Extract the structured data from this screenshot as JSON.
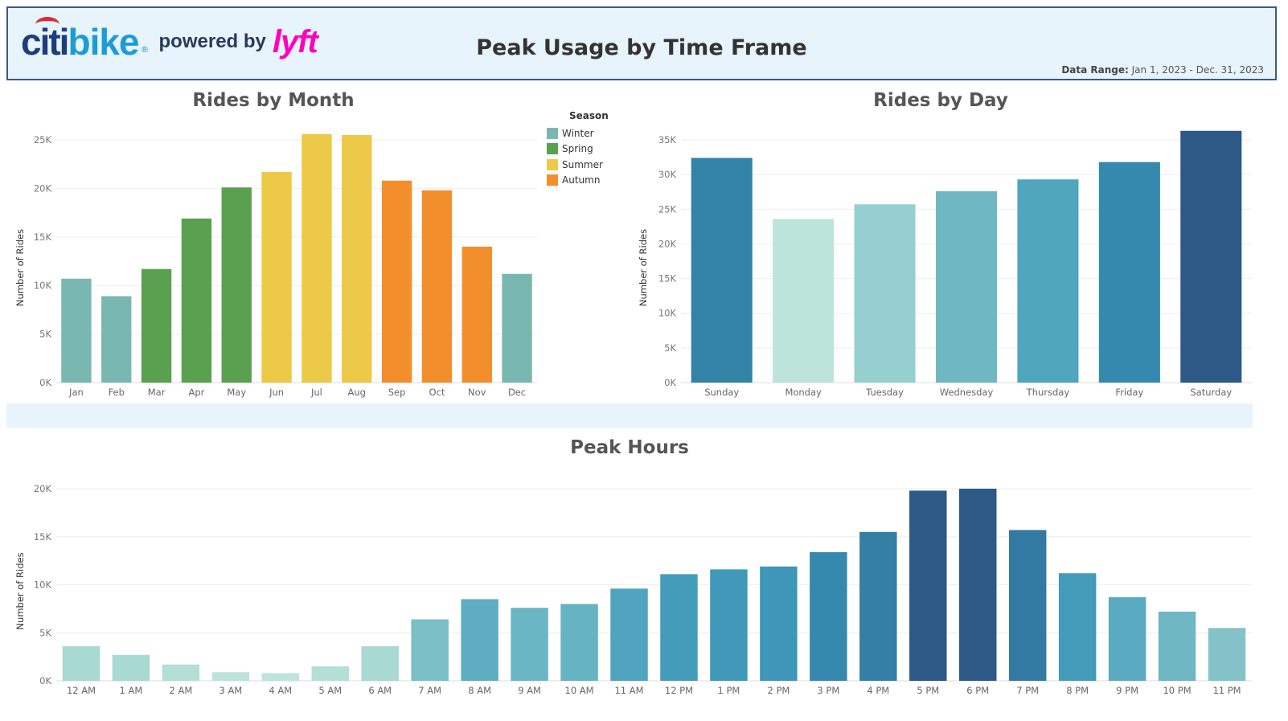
{
  "header": {
    "logo_citi": "citi",
    "logo_bike": "bike",
    "logo_reg": "®",
    "logo_powered": "powered by",
    "logo_lyft": "lyft",
    "title": "Peak Usage by Time Frame",
    "data_range_label": "Data Range:",
    "data_range_value": "Jan 1, 2023 - Dec. 31, 2023"
  },
  "legend": {
    "title": "Season",
    "items": [
      {
        "label": "Winter",
        "color": "#79b8b0"
      },
      {
        "label": "Spring",
        "color": "#59a14f"
      },
      {
        "label": "Summer",
        "color": "#edc948"
      },
      {
        "label": "Autumn",
        "color": "#f28e2b"
      }
    ]
  },
  "chart_data": [
    {
      "type": "bar",
      "title": "Rides by Month",
      "xlabel": "",
      "ylabel": "Number of Rides",
      "ylim": [
        0,
        25000
      ],
      "yticks": [
        "0K",
        "5K",
        "10K",
        "15K",
        "20K",
        "25K"
      ],
      "categories": [
        "Jan",
        "Feb",
        "Mar",
        "Apr",
        "May",
        "Jun",
        "Jul",
        "Aug",
        "Sep",
        "Oct",
        "Nov",
        "Dec"
      ],
      "values": [
        10700,
        8900,
        11700,
        16900,
        20100,
        21700,
        25600,
        25500,
        20800,
        19800,
        14000,
        11200
      ],
      "colors": [
        "#79b8b0",
        "#79b8b0",
        "#59a14f",
        "#59a14f",
        "#59a14f",
        "#edc948",
        "#edc948",
        "#edc948",
        "#f28e2b",
        "#f28e2b",
        "#f28e2b",
        "#79b8b0"
      ],
      "grid": true
    },
    {
      "type": "bar",
      "title": "Rides by Day",
      "xlabel": "",
      "ylabel": "Number of Rides",
      "ylim": [
        0,
        35000
      ],
      "yticks": [
        "0K",
        "5K",
        "10K",
        "15K",
        "20K",
        "25K",
        "30K",
        "35K"
      ],
      "categories": [
        "Sunday",
        "Monday",
        "Tuesday",
        "Wednesday",
        "Thursday",
        "Friday",
        "Saturday"
      ],
      "values": [
        32400,
        23600,
        25700,
        27600,
        29300,
        31800,
        36300
      ],
      "colors": [
        "#3383a6",
        "#bde4da",
        "#96cfcf",
        "#6fb7c3",
        "#4fa6bd",
        "#3589ae",
        "#2c5985"
      ],
      "grid": true
    },
    {
      "type": "bar",
      "title": "Peak Hours",
      "xlabel": "",
      "ylabel": "Number of Rides",
      "ylim": [
        0,
        20000
      ],
      "yticks": [
        "0K",
        "5K",
        "10K",
        "15K",
        "20K"
      ],
      "categories": [
        "12 AM",
        "1 AM",
        "2 AM",
        "3 AM",
        "4 AM",
        "5 AM",
        "6 AM",
        "7 AM",
        "8 AM",
        "9 AM",
        "10 AM",
        "11 AM",
        "12 PM",
        "1 PM",
        "2 PM",
        "3 PM",
        "4 PM",
        "5 PM",
        "6 PM",
        "7 PM",
        "8 PM",
        "9 PM",
        "10 PM",
        "11 PM"
      ],
      "values": [
        3600,
        2700,
        1700,
        900,
        800,
        1500,
        3600,
        6400,
        8500,
        7600,
        8000,
        9600,
        11100,
        11600,
        11900,
        13400,
        15500,
        19800,
        20000,
        15700,
        11200,
        8700,
        7200,
        5500
      ],
      "colors": [
        "#a8d9d3",
        "#a8d9d3",
        "#b3dfd7",
        "#bde4da",
        "#bde4da",
        "#b3dfd7",
        "#a8d9d3",
        "#7bbfc6",
        "#5fadc3",
        "#6ab6c4",
        "#66b3c3",
        "#50a4bf",
        "#449cbb",
        "#4099b9",
        "#3e97b8",
        "#3589ae",
        "#337fa5",
        "#2c5985",
        "#2c5985",
        "#327aa2",
        "#449cbb",
        "#5aabc1",
        "#6fb7c3",
        "#83c3c8"
      ],
      "grid": true
    }
  ]
}
